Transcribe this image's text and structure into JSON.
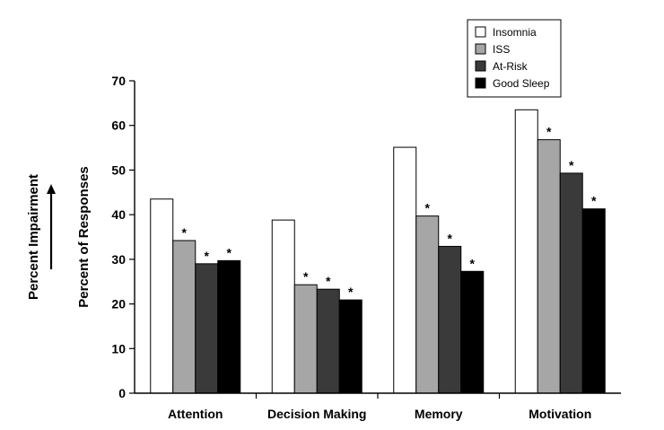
{
  "chart_data": {
    "type": "bar",
    "title": "",
    "xlabel": "",
    "ylabel": "Percent of Responses",
    "side_label": "Percent Impairment",
    "ylim": [
      0,
      70
    ],
    "yticks": [
      0,
      10,
      20,
      30,
      40,
      50,
      60,
      70
    ],
    "grid": false,
    "legend_position": "top-right",
    "categories": [
      "Attention",
      "Decision Making",
      "Memory",
      "Motivation"
    ],
    "series": [
      {
        "name": "Insomnia",
        "color": "#ffffff",
        "values": [
          43.5,
          38.8,
          55.1,
          63.5
        ]
      },
      {
        "name": "ISS",
        "color": "#a6a6a6",
        "values": [
          34.2,
          24.3,
          39.7,
          56.8
        ]
      },
      {
        "name": "At-Risk",
        "color": "#3a3a3a",
        "values": [
          29.0,
          23.3,
          32.9,
          49.3
        ]
      },
      {
        "name": "Good Sleep",
        "color": "#000000",
        "values": [
          29.7,
          20.9,
          27.3,
          41.3
        ]
      }
    ],
    "significance_marker": "*",
    "significant": [
      [
        false,
        false,
        false,
        false
      ],
      [
        true,
        true,
        true,
        true
      ],
      [
        true,
        true,
        true,
        true
      ],
      [
        true,
        true,
        true,
        true
      ]
    ]
  }
}
